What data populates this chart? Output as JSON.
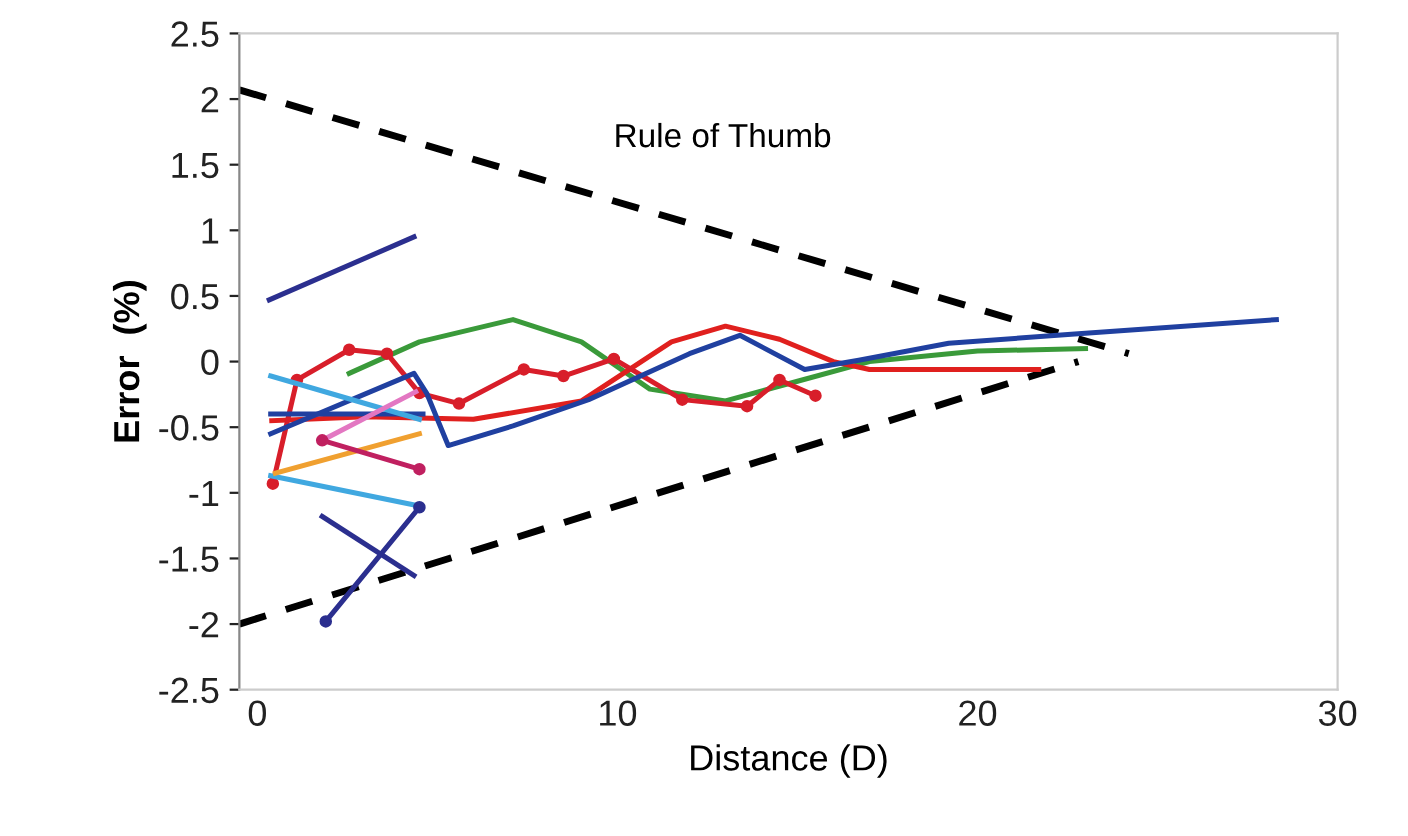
{
  "chart_data": {
    "type": "line",
    "xlabel": "Distance (D)",
    "ylabel": "Error  (%)",
    "xlim": [
      -0.5,
      30
    ],
    "ylim": [
      -2.5,
      2.5
    ],
    "xticks": [
      0,
      10,
      20,
      30
    ],
    "yticks": [
      -2.5,
      -2,
      -1.5,
      -1,
      -0.5,
      0,
      0.5,
      1,
      1.5,
      2,
      2.5
    ],
    "grid": false,
    "legend": false,
    "annotations": [
      "Rule of Thumb"
    ],
    "series": [
      {
        "color": "#000000",
        "line_style": "dashed",
        "marker": "none",
        "x": [
          -0.5,
          24.2
        ],
        "values": [
          2.07,
          0.06
        ]
      },
      {
        "color": "#000000",
        "line_style": "dashed",
        "marker": "none",
        "x": [
          -0.5,
          22.8
        ],
        "values": [
          -2.0,
          0.0
        ]
      },
      {
        "color": "#2b2f8f",
        "marker": "none",
        "x": [
          0.33,
          4.35
        ],
        "values": [
          0.47,
          0.95
        ]
      },
      {
        "color": "#3a9a3a",
        "marker": "none",
        "x": [
          2.55,
          4.5,
          7.1,
          9,
          10.9,
          13,
          15,
          17,
          20,
          23
        ],
        "values": [
          -0.09,
          0.15,
          0.32,
          0.15,
          -0.21,
          -0.3,
          -0.15,
          0.0,
          0.08,
          0.1
        ]
      },
      {
        "color": "#e0201e",
        "marker": "none",
        "x": [
          0.4,
          3,
          6,
          9,
          11.5,
          13,
          14.5,
          16,
          17,
          21.7
        ],
        "values": [
          -0.45,
          -0.42,
          -0.44,
          -0.3,
          0.15,
          0.27,
          0.17,
          0.0,
          -0.06,
          -0.06
        ]
      },
      {
        "color": "#d81e2a",
        "marker": "circle",
        "x": [
          0.43,
          1.1,
          2.55,
          3.6,
          4.5,
          5.6,
          7.4,
          8.5,
          9.9,
          11.8,
          13.6,
          14.5,
          15.5
        ],
        "values": [
          -0.93,
          -0.14,
          0.09,
          0.06,
          -0.24,
          -0.32,
          -0.06,
          -0.11,
          0.02,
          -0.29,
          -0.34,
          -0.14,
          -0.26
        ]
      },
      {
        "color": "#2040a0",
        "marker": "none",
        "x": [
          0.37,
          4.35,
          4.7,
          5.3,
          7.1,
          9.2,
          12,
          13.4,
          15.2,
          16.7,
          19.2,
          22.7,
          28.3
        ],
        "values": [
          -0.55,
          -0.09,
          -0.24,
          -0.64,
          -0.49,
          -0.29,
          0.06,
          0.2,
          -0.06,
          0.01,
          0.14,
          0.21,
          0.32
        ]
      },
      {
        "color": "#2040a0",
        "marker": "none",
        "x": [
          0.37,
          4.6
        ],
        "values": [
          -0.4,
          -0.4
        ]
      },
      {
        "color": "#40a8e0",
        "marker": "none",
        "x": [
          0.37,
          4.5
        ],
        "values": [
          -0.11,
          -0.44
        ]
      },
      {
        "color": "#40a8e0",
        "marker": "none",
        "x": [
          0.37,
          4.5
        ],
        "values": [
          -0.87,
          -1.1
        ]
      },
      {
        "color": "#f0a030",
        "marker": "none",
        "x": [
          0.5,
          4.5
        ],
        "values": [
          -0.85,
          -0.55
        ]
      },
      {
        "color": "#e377c2",
        "marker": "none",
        "x": [
          1.8,
          4.4
        ],
        "values": [
          -0.6,
          -0.23
        ]
      },
      {
        "color": "#c02060",
        "marker": "circle",
        "x": [
          1.8,
          4.5
        ],
        "values": [
          -0.6,
          -0.82
        ]
      },
      {
        "color": "#2b2f8f",
        "marker": "none",
        "x": [
          1.8,
          4.35
        ],
        "values": [
          -1.18,
          -1.63
        ]
      },
      {
        "color": "#2b2f8f",
        "marker": "circle",
        "x": [
          1.9,
          4.5
        ],
        "values": [
          -1.98,
          -1.11
        ]
      }
    ]
  }
}
